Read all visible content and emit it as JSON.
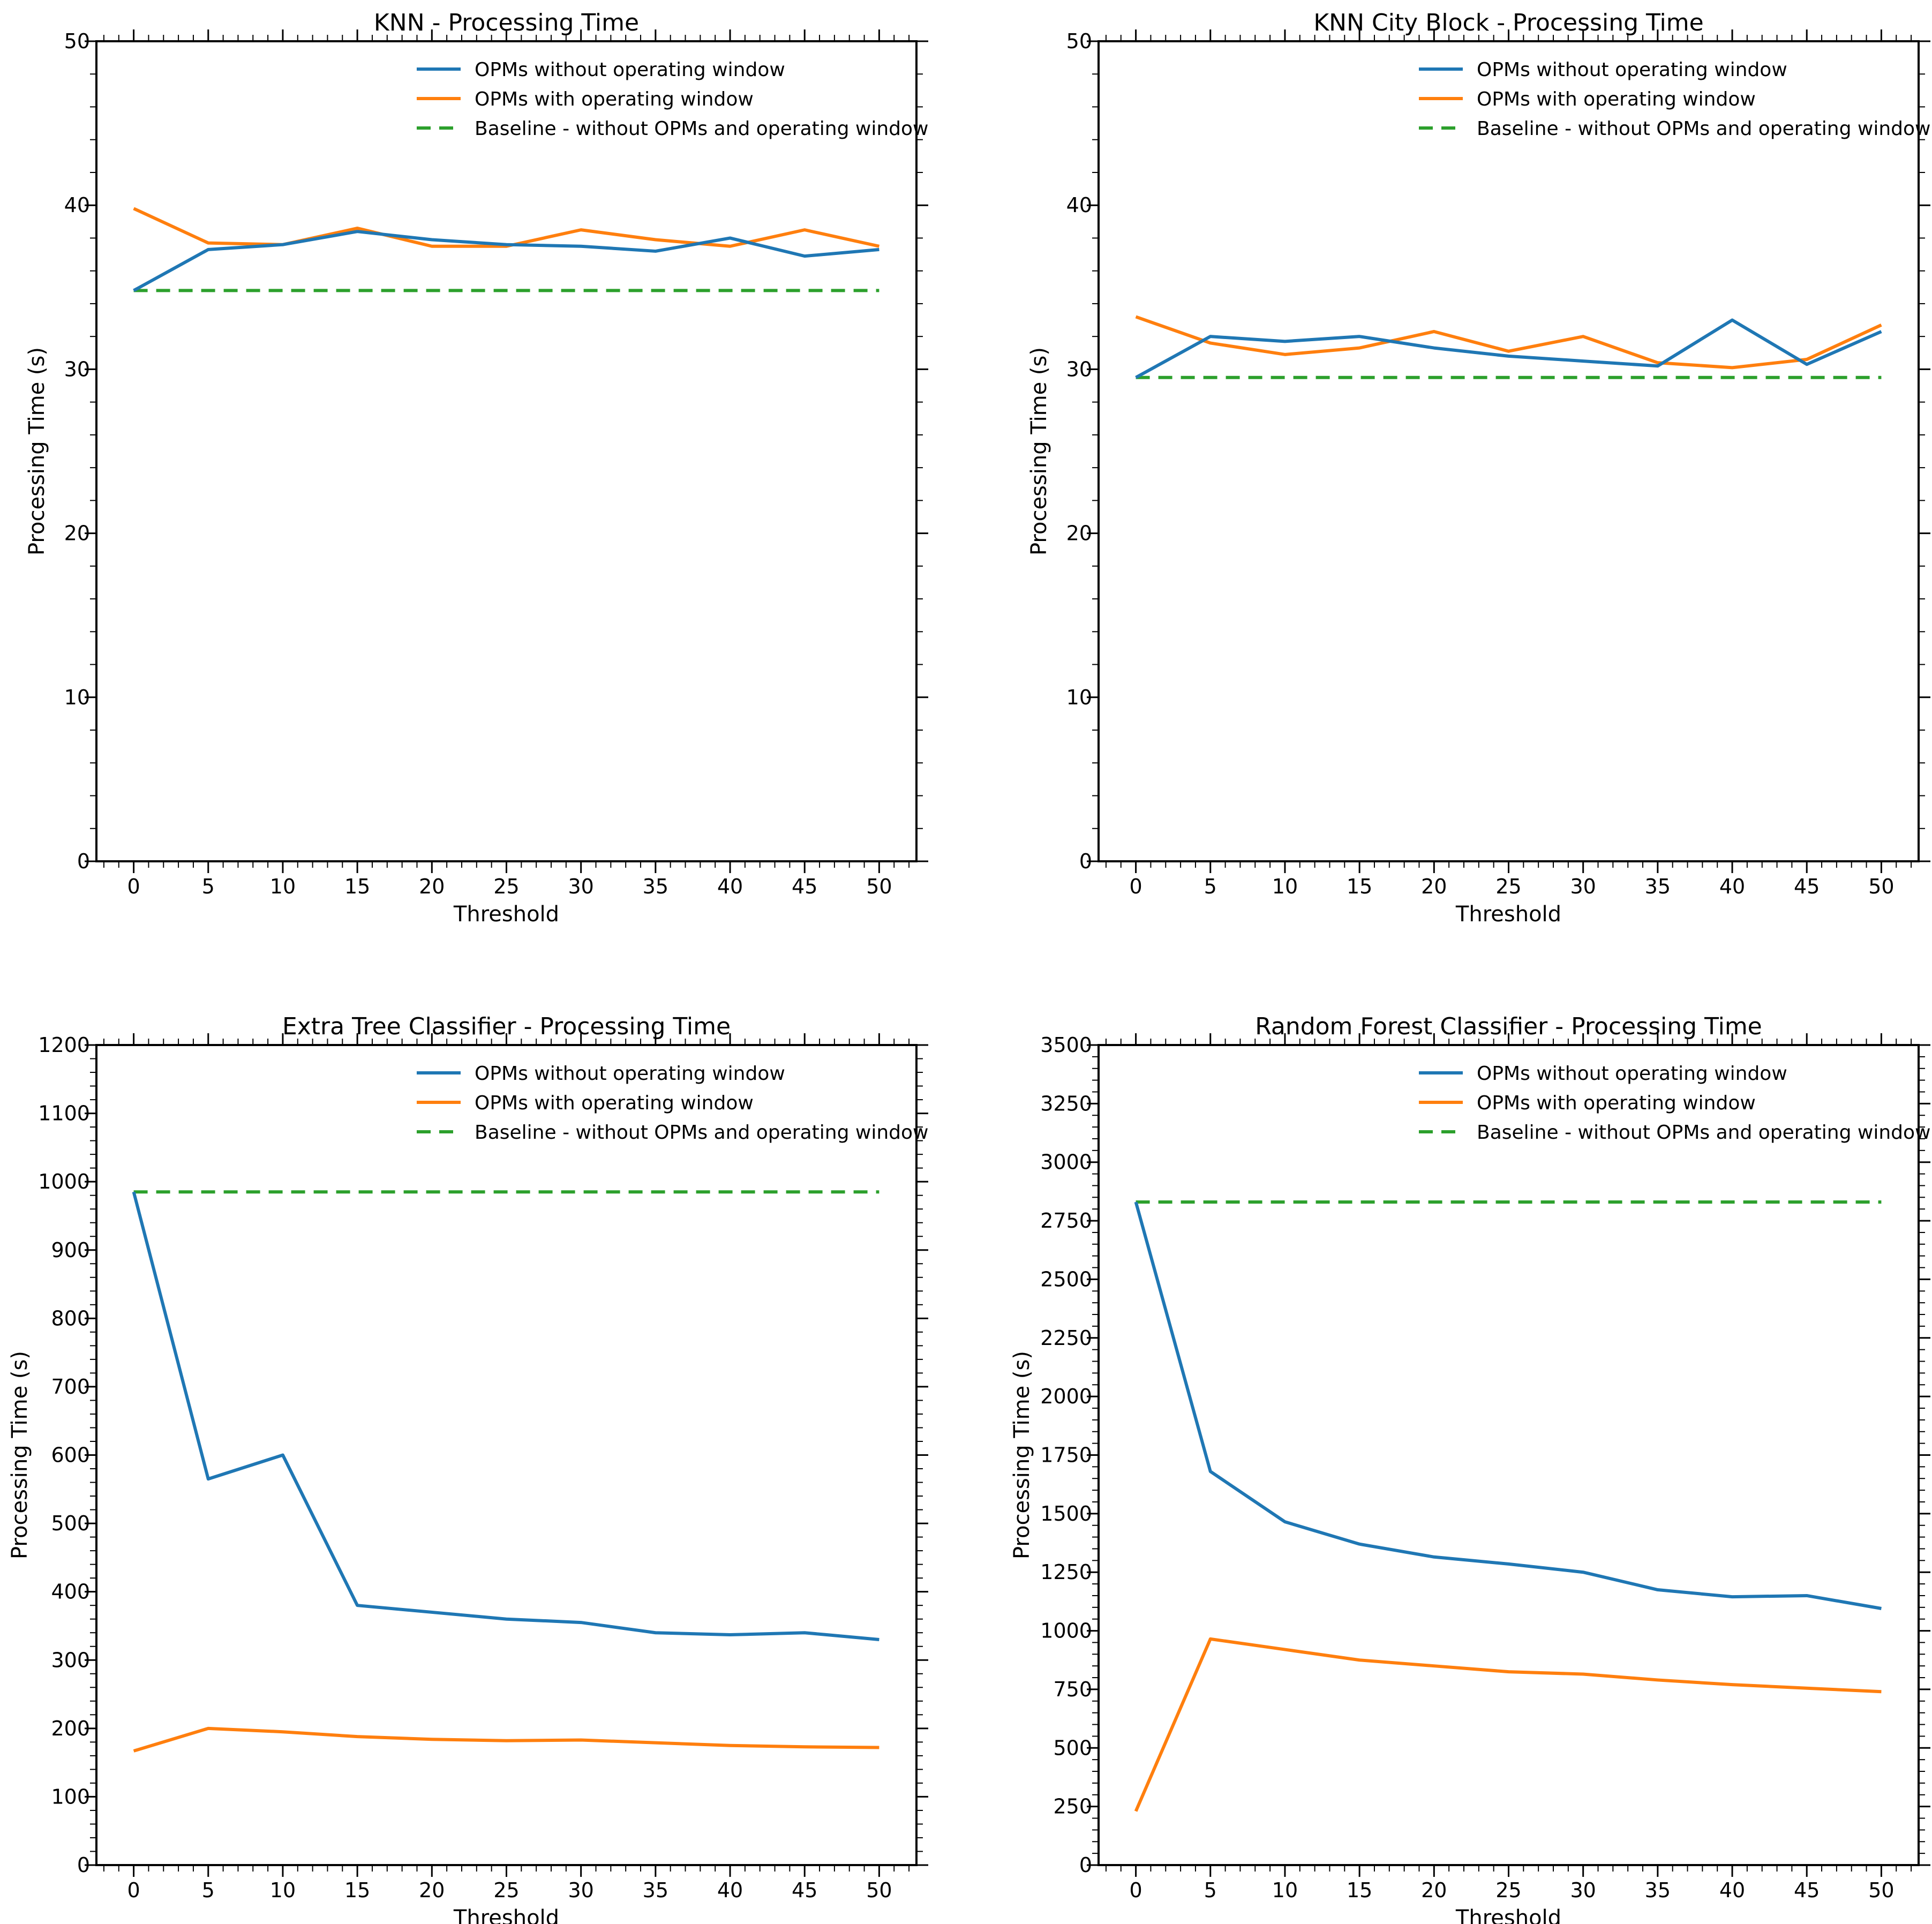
{
  "colors": {
    "series_without": "#1f77b4",
    "series_with": "#ff7f0e",
    "baseline": "#2ca02c",
    "axis": "#000000",
    "background": "#ffffff"
  },
  "legend_position": "top-right",
  "chart_data": [
    {
      "type": "line",
      "title": "KNN - Processing Time",
      "xlabel": "Threshold",
      "ylabel": "Processing Time (s)",
      "x": [
        0,
        5,
        10,
        15,
        20,
        25,
        30,
        35,
        40,
        45,
        50
      ],
      "xticks": [
        "0",
        "5",
        "10",
        "15",
        "20",
        "25",
        "30",
        "35",
        "40",
        "45",
        "50"
      ],
      "ylim": [
        0,
        50
      ],
      "yticks": [
        "0",
        "10",
        "20",
        "30",
        "40",
        "50"
      ],
      "series": [
        {
          "name": "OPMs without operating window",
          "style": "solid",
          "color": "#1f77b4",
          "values": [
            34.8,
            37.3,
            37.6,
            38.4,
            37.9,
            37.6,
            37.5,
            37.2,
            38.0,
            36.9,
            37.3
          ]
        },
        {
          "name": "OPMs with operating window",
          "style": "solid",
          "color": "#ff7f0e",
          "values": [
            39.8,
            37.7,
            37.6,
            38.6,
            37.5,
            37.5,
            38.5,
            37.9,
            37.5,
            38.5,
            37.5
          ]
        },
        {
          "name": "Baseline - without OPMs and operating window",
          "style": "dashed",
          "color": "#2ca02c",
          "values": [
            34.8,
            34.8,
            34.8,
            34.8,
            34.8,
            34.8,
            34.8,
            34.8,
            34.8,
            34.8,
            34.8
          ]
        }
      ]
    },
    {
      "type": "line",
      "title": "KNN City Block  - Processing Time",
      "xlabel": "Threshold",
      "ylabel": "Processing Time (s)",
      "x": [
        0,
        5,
        10,
        15,
        20,
        25,
        30,
        35,
        40,
        45,
        50
      ],
      "xticks": [
        "0",
        "5",
        "10",
        "15",
        "20",
        "25",
        "30",
        "35",
        "40",
        "45",
        "50"
      ],
      "ylim": [
        0,
        50
      ],
      "yticks": [
        "0",
        "10",
        "20",
        "30",
        "40",
        "50"
      ],
      "series": [
        {
          "name": "OPMs without operating window",
          "style": "solid",
          "color": "#1f77b4",
          "values": [
            29.5,
            32.0,
            31.7,
            32.0,
            31.3,
            30.8,
            30.5,
            30.2,
            33.0,
            30.3,
            32.3
          ]
        },
        {
          "name": "OPMs with operating window",
          "style": "solid",
          "color": "#ff7f0e",
          "values": [
            33.2,
            31.6,
            30.9,
            31.3,
            32.3,
            31.1,
            32.0,
            30.4,
            30.1,
            30.6,
            32.7
          ]
        },
        {
          "name": "Baseline - without OPMs and operating window",
          "style": "dashed",
          "color": "#2ca02c",
          "values": [
            29.5,
            29.5,
            29.5,
            29.5,
            29.5,
            29.5,
            29.5,
            29.5,
            29.5,
            29.5,
            29.5
          ]
        }
      ]
    },
    {
      "type": "line",
      "title": "Extra Tree Classifier - Processing Time",
      "xlabel": "Threshold",
      "ylabel": "Processing Time (s)",
      "x": [
        0,
        5,
        10,
        15,
        20,
        25,
        30,
        35,
        40,
        45,
        50
      ],
      "xticks": [
        "0",
        "5",
        "10",
        "15",
        "20",
        "25",
        "30",
        "35",
        "40",
        "45",
        "50"
      ],
      "ylim": [
        0,
        1200
      ],
      "yticks": [
        "0",
        "100",
        "200",
        "300",
        "400",
        "500",
        "600",
        "700",
        "800",
        "900",
        "1000",
        "1100",
        "1200"
      ],
      "series": [
        {
          "name": "OPMs without operating window",
          "style": "solid",
          "color": "#1f77b4",
          "values": [
            985,
            565,
            600,
            380,
            370,
            360,
            355,
            340,
            337,
            340,
            330
          ]
        },
        {
          "name": "OPMs with operating window",
          "style": "solid",
          "color": "#ff7f0e",
          "values": [
            167,
            200,
            195,
            188,
            184,
            182,
            183,
            179,
            175,
            173,
            172
          ]
        },
        {
          "name": "Baseline - without OPMs and operating window",
          "style": "dashed",
          "color": "#2ca02c",
          "values": [
            985,
            985,
            985,
            985,
            985,
            985,
            985,
            985,
            985,
            985,
            985
          ]
        }
      ]
    },
    {
      "type": "line",
      "title": "Random Forest Classifier - Processing Time",
      "xlabel": "Threshold",
      "ylabel": "Processing Time (s)",
      "x": [
        0,
        5,
        10,
        15,
        20,
        25,
        30,
        35,
        40,
        45,
        50
      ],
      "xticks": [
        "0",
        "5",
        "10",
        "15",
        "20",
        "25",
        "30",
        "35",
        "40",
        "45",
        "50"
      ],
      "ylim": [
        0,
        3500
      ],
      "yticks": [
        "0",
        "250",
        "500",
        "750",
        "1000",
        "1250",
        "1500",
        "1750",
        "2000",
        "2250",
        "2500",
        "2750",
        "3000",
        "3250",
        "3500"
      ],
      "series": [
        {
          "name": "OPMs without operating window",
          "style": "solid",
          "color": "#1f77b4",
          "values": [
            2830,
            1680,
            1465,
            1370,
            1315,
            1285,
            1250,
            1175,
            1145,
            1150,
            1095
          ]
        },
        {
          "name": "OPMs with operating window",
          "style": "solid",
          "color": "#ff7f0e",
          "values": [
            230,
            965,
            920,
            875,
            850,
            825,
            815,
            790,
            770,
            755,
            740
          ]
        },
        {
          "name": "Baseline - without OPMs and operating window",
          "style": "dashed",
          "color": "#2ca02c",
          "values": [
            2830,
            2830,
            2830,
            2830,
            2830,
            2830,
            2830,
            2830,
            2830,
            2830,
            2830
          ]
        }
      ]
    }
  ]
}
